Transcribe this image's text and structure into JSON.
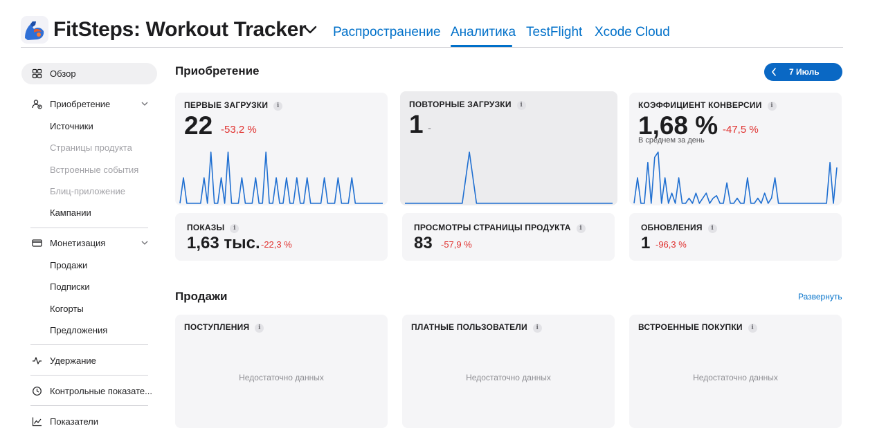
{
  "header": {
    "app_title": "FitSteps: Workout Tracker",
    "app_icon": "flexing-arm-icon",
    "tabs": [
      {
        "label": "Распространение",
        "active": false
      },
      {
        "label": "Аналитика",
        "active": true
      },
      {
        "label": "TestFlight",
        "active": false
      },
      {
        "label": "Xcode Cloud",
        "active": false
      }
    ]
  },
  "sidebar": {
    "overview": {
      "label": "Обзор",
      "icon": "grid-icon"
    },
    "acquisition": {
      "label": "Приобретение",
      "icon": "person-plus-icon",
      "items": [
        {
          "label": "Источники",
          "enabled": true
        },
        {
          "label": "Страницы продукта",
          "enabled": false
        },
        {
          "label": "Встроенные события",
          "enabled": false
        },
        {
          "label": "Блиц-приложение",
          "enabled": false
        },
        {
          "label": "Кампании",
          "enabled": true
        }
      ]
    },
    "monetization": {
      "label": "Монетизация",
      "icon": "card-icon",
      "items": [
        {
          "label": "Продажи"
        },
        {
          "label": "Подписки"
        },
        {
          "label": "Когорты"
        },
        {
          "label": "Предложения"
        }
      ]
    },
    "retention": {
      "label": "Удержание",
      "icon": "pulse-icon"
    },
    "benchmarks": {
      "label": "Контрольные показате...",
      "icon": "clock-icon"
    },
    "metrics": {
      "label": "Показатели",
      "icon": "chart-icon"
    }
  },
  "acquisition": {
    "title": "Приобретение",
    "date_label": "7 Июль",
    "cards": {
      "first_downloads": {
        "title": "ПЕРВЫЕ ЗАГРУЗКИ",
        "value": "22",
        "delta": "-53,2 %"
      },
      "redownloads": {
        "title": "ПОВТОРНЫЕ ЗАГРУЗКИ",
        "value": "1",
        "delta": "-"
      },
      "conversion": {
        "title": "КОЭФФИЦИЕНТ КОНВЕРСИИ",
        "value": "1,68 %",
        "delta": "-47,5 %",
        "subtitle": "В среднем за день"
      },
      "impressions": {
        "title": "ПОКАЗЫ",
        "value": "1,63 тыс.",
        "delta": "-22,3 %"
      },
      "product_page_views": {
        "title": "ПРОСМОТРЫ СТРАНИЦЫ ПРОДУКТА",
        "value": "83",
        "delta": "-57,9 %"
      },
      "updates": {
        "title": "ОБНОВЛЕНИЯ",
        "value": "1",
        "delta": "-96,3 %"
      }
    }
  },
  "sales": {
    "title": "Продажи",
    "expand_label": "Развернуть",
    "cards": {
      "proceeds": {
        "title": "ПОСТУПЛЕНИЯ",
        "empty": "Недостаточно данных"
      },
      "paying_users": {
        "title": "ПЛАТНЫЕ ПОЛЬЗОВАТЕЛИ",
        "empty": "Недостаточно данных"
      },
      "iap": {
        "title": "ВСТРОЕННЫЕ ПОКУПКИ",
        "empty": "Недостаточно данных"
      }
    }
  },
  "colors": {
    "accent": "#0070c9",
    "negative": "#e0312f",
    "spark": "#1f6fd1"
  },
  "chart_data": [
    {
      "type": "line",
      "name": "first_downloads",
      "x": [
        0,
        1,
        2,
        3,
        4,
        5,
        6,
        7,
        8,
        9,
        10,
        11,
        12,
        13,
        14,
        15,
        16,
        17,
        18,
        19,
        20,
        21,
        22,
        23,
        24,
        25,
        26,
        27,
        28,
        29,
        30,
        31,
        32,
        33,
        34,
        35,
        36,
        37,
        38,
        39,
        40,
        41,
        42,
        43,
        44,
        45,
        46,
        47,
        48,
        49,
        50,
        51,
        52,
        53,
        54,
        55,
        56,
        57,
        58,
        59
      ],
      "values": [
        0,
        1,
        0,
        0,
        0,
        0,
        0,
        1,
        0,
        2,
        0,
        0,
        1,
        0,
        2,
        0,
        0,
        0,
        1,
        0,
        0,
        0,
        1,
        0,
        0,
        2,
        0,
        0,
        1,
        0,
        0,
        1,
        0,
        0,
        1,
        0,
        0,
        1,
        0,
        0,
        0,
        0,
        1,
        0,
        0,
        0,
        1,
        0,
        0,
        0,
        1,
        0,
        0,
        0,
        0,
        0,
        0,
        0,
        0,
        0
      ]
    },
    {
      "type": "line",
      "name": "redownloads",
      "x": [
        0,
        1,
        2,
        3,
        4,
        5,
        6,
        7,
        8,
        9,
        10,
        11,
        12,
        13,
        14,
        15,
        16,
        17,
        18,
        19,
        20,
        21,
        22,
        23,
        24,
        25,
        26,
        27,
        28,
        29
      ],
      "values": [
        0,
        0,
        0,
        0,
        0,
        0,
        0,
        0,
        0,
        1,
        0,
        0,
        0,
        0,
        0,
        0,
        0,
        0,
        0,
        0,
        0,
        0,
        0,
        0,
        0,
        0,
        0,
        0,
        0,
        0
      ]
    },
    {
      "type": "line",
      "name": "conversion",
      "x": [
        0,
        1,
        2,
        3,
        4,
        5,
        6,
        7,
        8,
        9,
        10,
        11,
        12,
        13,
        14,
        15,
        16,
        17,
        18,
        19,
        20,
        21,
        22,
        23,
        24,
        25,
        26,
        27,
        28,
        29,
        30,
        31,
        32,
        33,
        34,
        35,
        36,
        37,
        38,
        39,
        40,
        41,
        42,
        43,
        44,
        45,
        46,
        47,
        48,
        49,
        50,
        51,
        52,
        53,
        54,
        55,
        56,
        57,
        58,
        59
      ],
      "values": [
        0,
        0.5,
        0,
        0,
        0.8,
        0,
        0.9,
        1,
        0,
        0.5,
        0,
        0.2,
        0,
        0.5,
        0,
        0,
        0.1,
        0,
        0.2,
        0,
        0.1,
        0.2,
        0,
        0.1,
        0.15,
        0,
        0,
        0.4,
        0,
        0,
        0.1,
        0,
        0,
        0.5,
        0,
        0,
        0.1,
        0,
        0.2,
        0,
        0.1,
        0.5,
        0,
        0,
        0,
        0,
        0,
        0,
        0,
        0,
        0,
        0,
        0,
        0,
        0,
        0,
        0,
        0.8,
        0,
        0.7
      ]
    }
  ]
}
